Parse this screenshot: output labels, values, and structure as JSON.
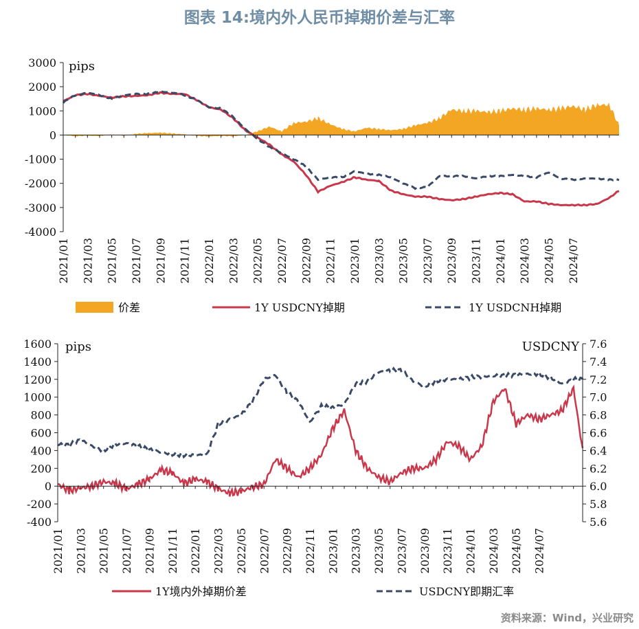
{
  "title": "图表 14:境内外人民币掉期价差与汇率",
  "source": "资料来源：Wind，兴业研究",
  "colors": {
    "spread": "#f2a623",
    "cny": "#c8374a",
    "cnh": "#3a4a66",
    "axis": "#222222"
  },
  "chart_data": [
    {
      "type": "area",
      "unit_label": "pips",
      "ylim": [
        -4000,
        3000
      ],
      "yticks": [
        3000,
        2000,
        1000,
        0,
        -1000,
        -2000,
        -3000,
        -4000
      ],
      "xticks": [
        "2021/01",
        "2021/03",
        "2021/05",
        "2021/07",
        "2021/09",
        "2021/11",
        "2022/01",
        "2022/03",
        "2022/05",
        "2022/07",
        "2022/09",
        "2022/11",
        "2023/01",
        "2023/03",
        "2023/05",
        "2023/07",
        "2023/09",
        "2023/11",
        "2024/01",
        "2024/03",
        "2024/05",
        "2024/07"
      ],
      "legend": [
        "价差",
        "1Y USDCNY掉期",
        "1Y USDCNH掉期"
      ],
      "x_months": [
        0,
        1,
        2,
        3,
        4,
        5,
        6,
        7,
        8,
        9,
        10,
        11,
        12,
        13,
        14,
        15,
        16,
        17,
        18,
        19,
        20,
        21,
        22,
        23,
        24,
        25,
        26,
        27,
        28,
        29,
        30,
        31,
        32,
        33,
        34,
        35,
        36,
        37,
        38,
        39,
        40,
        41,
        42,
        43,
        44,
        45,
        45.8
      ],
      "series": [
        {
          "name": "价差",
          "kind": "area",
          "values": [
            0,
            -50,
            -30,
            -40,
            20,
            -30,
            50,
            80,
            100,
            60,
            30,
            -40,
            -60,
            -40,
            -50,
            0,
            150,
            350,
            150,
            500,
            550,
            700,
            450,
            250,
            150,
            300,
            250,
            200,
            250,
            400,
            500,
            700,
            1050,
            1000,
            1000,
            950,
            1000,
            1100,
            1050,
            1100,
            1050,
            1100,
            1200,
            1050,
            1250,
            1250,
            400
          ]
        },
        {
          "name": "1Y USDCNY掉期",
          "kind": "line",
          "values": [
            1400,
            1650,
            1700,
            1620,
            1550,
            1600,
            1620,
            1650,
            1750,
            1700,
            1700,
            1450,
            1150,
            1050,
            700,
            200,
            -100,
            -400,
            -800,
            -1100,
            -1650,
            -2350,
            -2100,
            -1950,
            -1750,
            -1850,
            -1900,
            -2300,
            -2450,
            -2550,
            -2550,
            -2650,
            -2700,
            -2650,
            -2550,
            -2450,
            -2400,
            -2450,
            -2750,
            -2750,
            -2850,
            -2900,
            -2900,
            -2900,
            -2850,
            -2600,
            -2300
          ]
        },
        {
          "name": "1Y USDCNH掉期",
          "kind": "line",
          "values": [
            1350,
            1650,
            1750,
            1650,
            1500,
            1650,
            1700,
            1700,
            1800,
            1750,
            1650,
            1450,
            1150,
            1100,
            750,
            250,
            -150,
            -500,
            -750,
            -1000,
            -1300,
            -1850,
            -1750,
            -1750,
            -1500,
            -1600,
            -1650,
            -1750,
            -2000,
            -2200,
            -2150,
            -1700,
            -1700,
            -1700,
            -1800,
            -1700,
            -1700,
            -1650,
            -1700,
            -1750,
            -1550,
            -1800,
            -1850,
            -1800,
            -1800,
            -1850,
            -1850
          ]
        }
      ]
    },
    {
      "type": "line",
      "unit_label_left": "pips",
      "unit_label_right": "USDCNY",
      "ylim_left": [
        -400,
        1600
      ],
      "ylim_right": [
        5.6,
        7.6
      ],
      "yticks_left": [
        1600,
        1400,
        1200,
        1000,
        800,
        600,
        400,
        200,
        0,
        -200,
        -400
      ],
      "yticks_right": [
        "7.6",
        "7.4",
        "7.2",
        "7.0",
        "6.8",
        "6.6",
        "6.4",
        "6.2",
        "6.0",
        "5.8",
        "5.6"
      ],
      "xticks": [
        "2021/01",
        "2021/03",
        "2021/05",
        "2021/07",
        "2021/09",
        "2021/11",
        "2022/01",
        "2022/03",
        "2022/05",
        "2022/07",
        "2022/09",
        "2022/11",
        "2023/01",
        "2023/03",
        "2023/05",
        "2023/07",
        "2023/09",
        "2023/11",
        "2024/01",
        "2024/03",
        "2024/05",
        "2024/07"
      ],
      "legend": [
        "1Y境内外掉期价差",
        "USDCNY即期汇率"
      ],
      "x_months": [
        0,
        1,
        2,
        3,
        4,
        5,
        6,
        7,
        8,
        9,
        10,
        11,
        12,
        13,
        14,
        15,
        16,
        17,
        18,
        19,
        20,
        21,
        22,
        23,
        24,
        25,
        26,
        27,
        28,
        29,
        30,
        31,
        32,
        33,
        34,
        35,
        36,
        37,
        38,
        39,
        40,
        41,
        42,
        43,
        44,
        45,
        45.8
      ],
      "series": [
        {
          "name": "1Y境内外掉期价差",
          "axis": "left",
          "values": [
            20,
            -50,
            -20,
            0,
            50,
            30,
            -30,
            20,
            80,
            180,
            150,
            30,
            80,
            50,
            -30,
            -80,
            -60,
            -10,
            20,
            300,
            200,
            100,
            200,
            350,
            650,
            850,
            400,
            200,
            100,
            50,
            150,
            200,
            200,
            300,
            500,
            450,
            300,
            450,
            950,
            1100,
            700,
            800,
            750,
            800,
            850,
            1100,
            400
          ]
        },
        {
          "name": "USDCNY即期汇率",
          "axis": "right",
          "values": [
            6.47,
            6.46,
            6.52,
            6.45,
            6.4,
            6.47,
            6.48,
            6.45,
            6.41,
            6.38,
            6.36,
            6.35,
            6.35,
            6.35,
            6.7,
            6.75,
            6.8,
            6.95,
            7.2,
            7.25,
            7.05,
            6.95,
            6.72,
            6.9,
            6.88,
            6.92,
            7.15,
            7.18,
            7.28,
            7.3,
            7.3,
            7.18,
            7.12,
            7.18,
            7.2,
            7.2,
            7.22,
            7.23,
            7.24,
            7.24,
            7.25,
            7.26,
            7.26,
            7.22,
            7.15,
            7.2,
            7.2
          ]
        }
      ]
    }
  ]
}
